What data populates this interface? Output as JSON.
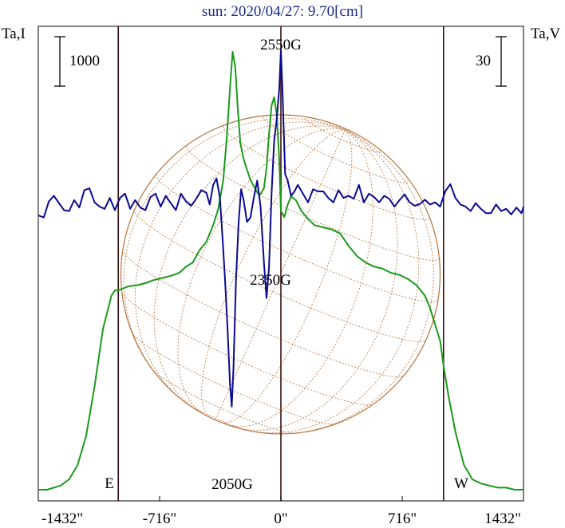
{
  "chart_data": {
    "type": "line",
    "title": "sun: 2020/04/27: 9.70[cm]",
    "left_axis_label": "Ta,I",
    "right_axis_label": "Ta,V",
    "left_scale_bar": "1000",
    "right_scale_bar": "30",
    "x_ticks": [
      {
        "value": -1432,
        "label": "-1432\""
      },
      {
        "value": -716,
        "label": "-716\""
      },
      {
        "value": 0,
        "label": "0\""
      },
      {
        "value": 716,
        "label": "716\""
      },
      {
        "value": 1432,
        "label": "1432\""
      }
    ],
    "xlim": [
      -1432,
      1432
    ],
    "limb_markers": [
      {
        "x": -960,
        "label": "E"
      },
      {
        "x": 960,
        "label": "W"
      }
    ],
    "center_marker": {
      "x": 0
    },
    "annotations": [
      {
        "label": "2550G",
        "x": 0
      },
      {
        "label": "2350G",
        "x": -80
      },
      {
        "label": "2050G",
        "x": -295
      }
    ],
    "series": [
      {
        "color": "#1a9a1a",
        "x": [
          -1432,
          -1380,
          -1300,
          -1250,
          -1200,
          -1150,
          -1100,
          -1050,
          -1000,
          -980,
          -960,
          -930,
          -900,
          -850,
          -800,
          -750,
          -700,
          -650,
          -600,
          -560,
          -520,
          -480,
          -440,
          -400,
          -370,
          -340,
          -320,
          -300,
          -285,
          -270,
          -255,
          -240,
          -220,
          -200,
          -180,
          -160,
          -140,
          -120,
          -100,
          -85,
          -70,
          -55,
          -40,
          -25,
          -10,
          0,
          20,
          40,
          60,
          90,
          120,
          160,
          200,
          250,
          300,
          350,
          400,
          450,
          500,
          550,
          600,
          650,
          700,
          750,
          800,
          850,
          880,
          910,
          940,
          960,
          990,
          1030,
          1080,
          1130,
          1180,
          1230,
          1280,
          1330,
          1380,
          1432
        ],
        "y": [
          0.0,
          0.0,
          0.02,
          0.05,
          0.12,
          0.26,
          0.5,
          0.78,
          0.94,
          0.965,
          0.965,
          0.975,
          0.985,
          0.99,
          1.0,
          1.015,
          1.025,
          1.035,
          1.05,
          1.08,
          1.1,
          1.16,
          1.2,
          1.28,
          1.36,
          1.5,
          1.7,
          1.95,
          2.12,
          2.05,
          1.85,
          1.68,
          1.6,
          1.55,
          1.5,
          1.47,
          1.44,
          1.43,
          1.46,
          1.56,
          1.72,
          1.86,
          1.9,
          1.82,
          1.6,
          1.35,
          1.32,
          1.38,
          1.42,
          1.4,
          1.35,
          1.31,
          1.28,
          1.27,
          1.26,
          1.24,
          1.18,
          1.13,
          1.1,
          1.08,
          1.07,
          1.05,
          1.04,
          1.02,
          0.99,
          0.94,
          0.88,
          0.8,
          0.72,
          0.6,
          0.45,
          0.28,
          0.12,
          0.05,
          0.03,
          0.02,
          0.01,
          0.01,
          0.0,
          0.0
        ]
      },
      {
        "color": "#0a0a90",
        "x": [
          -1432,
          -1400,
          -1370,
          -1340,
          -1310,
          -1280,
          -1250,
          -1220,
          -1190,
          -1160,
          -1130,
          -1100,
          -1070,
          -1040,
          -1010,
          -980,
          -950,
          -920,
          -890,
          -860,
          -830,
          -800,
          -770,
          -740,
          -710,
          -680,
          -650,
          -620,
          -590,
          -560,
          -530,
          -500,
          -470,
          -440,
          -420,
          -400,
          -380,
          -360,
          -345,
          -330,
          -315,
          -300,
          -290,
          -280,
          -265,
          -250,
          -235,
          -220,
          -200,
          -180,
          -160,
          -140,
          -120,
          -100,
          -85,
          -70,
          -55,
          -40,
          -25,
          -10,
          0,
          10,
          25,
          40,
          60,
          80,
          100,
          130,
          160,
          190,
          220,
          250,
          280,
          310,
          340,
          370,
          400,
          430,
          460,
          490,
          520,
          550,
          580,
          610,
          640,
          670,
          700,
          730,
          760,
          790,
          820,
          850,
          880,
          910,
          940,
          970,
          1000,
          1030,
          1060,
          1090,
          1120,
          1150,
          1180,
          1210,
          1240,
          1270,
          1300,
          1330,
          1360,
          1390,
          1420,
          1432
        ],
        "y": [
          0.0,
          -0.5,
          3.2,
          4.5,
          2.8,
          1.2,
          1.0,
          3.5,
          1.8,
          5.8,
          6.2,
          3.0,
          2.0,
          1.5,
          4.0,
          1.2,
          4.0,
          5.0,
          1.5,
          3.5,
          1.8,
          1.2,
          4.2,
          5.0,
          2.0,
          4.5,
          2.8,
          1.2,
          5.0,
          3.2,
          2.2,
          3.8,
          5.8,
          5.2,
          2.5,
          7.0,
          8.5,
          4.0,
          -5.0,
          -14.5,
          -26.0,
          -39.0,
          -44.0,
          -35.0,
          -15.0,
          -2.0,
          6.0,
          3.5,
          -1.5,
          -0.5,
          4.0,
          8.0,
          2.0,
          -11.0,
          -19.0,
          -12.0,
          5.0,
          17.0,
          22.0,
          29.0,
          38.0,
          28.0,
          9.5,
          8.0,
          4.5,
          5.5,
          7.0,
          5.0,
          3.0,
          6.0,
          5.5,
          5.5,
          4.0,
          3.0,
          5.8,
          4.0,
          4.5,
          3.8,
          7.0,
          3.0,
          5.0,
          4.2,
          3.0,
          4.5,
          3.8,
          2.0,
          3.5,
          4.8,
          3.0,
          2.2,
          2.6,
          3.6,
          2.5,
          3.0,
          2.0,
          5.5,
          7.2,
          4.0,
          2.5,
          2.0,
          1.0,
          2.8,
          1.5,
          0.5,
          0.5,
          2.5,
          1.0,
          1.5,
          0.2,
          1.8,
          0.5,
          2.0
        ]
      }
    ],
    "overlay": "solar disk with heliographic grid"
  }
}
